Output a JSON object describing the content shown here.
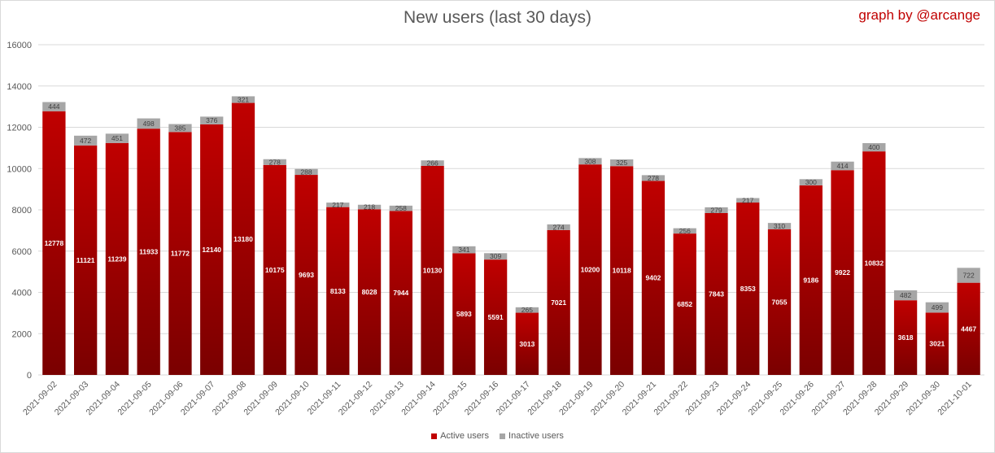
{
  "title": "New users (last 30 days)",
  "credit": "graph by @arcange",
  "colors": {
    "active": "#c00000",
    "active_dark": "#7a0000",
    "inactive": "#a6a6a6",
    "grid": "#d9d9d9"
  },
  "legend": {
    "active": "Active users",
    "inactive": "Inactive users"
  },
  "chart_data": {
    "type": "bar",
    "stacked": true,
    "title": "New users (last 30 days)",
    "ylim": [
      0,
      16000
    ],
    "yticks": [
      0,
      2000,
      4000,
      6000,
      8000,
      10000,
      12000,
      14000,
      16000
    ],
    "grid": true,
    "legend_position": "bottom",
    "categories": [
      "2021-09-02",
      "2021-09-03",
      "2021-09-04",
      "2021-09-05",
      "2021-09-06",
      "2021-09-07",
      "2021-09-08",
      "2021-09-09",
      "2021-09-10",
      "2021-09-11",
      "2021-09-12",
      "2021-09-13",
      "2021-09-14",
      "2021-09-15",
      "2021-09-16",
      "2021-09-17",
      "2021-09-18",
      "2021-09-19",
      "2021-09-20",
      "2021-09-21",
      "2021-09-22",
      "2021-09-23",
      "2021-09-24",
      "2021-09-25",
      "2021-09-26",
      "2021-09-27",
      "2021-09-28",
      "2021-09-29",
      "2021-09-30",
      "2021-10-01"
    ],
    "series": [
      {
        "name": "Active users",
        "values": [
          12778,
          11121,
          11239,
          11933,
          11772,
          12140,
          13180,
          10175,
          9693,
          8133,
          8028,
          7944,
          10130,
          5893,
          5591,
          3013,
          7021,
          10200,
          10118,
          9402,
          6852,
          7843,
          8353,
          7055,
          9186,
          9922,
          10832,
          3618,
          3021,
          4467
        ]
      },
      {
        "name": "Inactive users",
        "values": [
          444,
          472,
          451,
          498,
          385,
          376,
          321,
          278,
          288,
          217,
          218,
          258,
          266,
          341,
          309,
          265,
          274,
          308,
          325,
          278,
          256,
          279,
          217,
          310,
          300,
          414,
          400,
          482,
          499,
          722
        ]
      }
    ]
  }
}
